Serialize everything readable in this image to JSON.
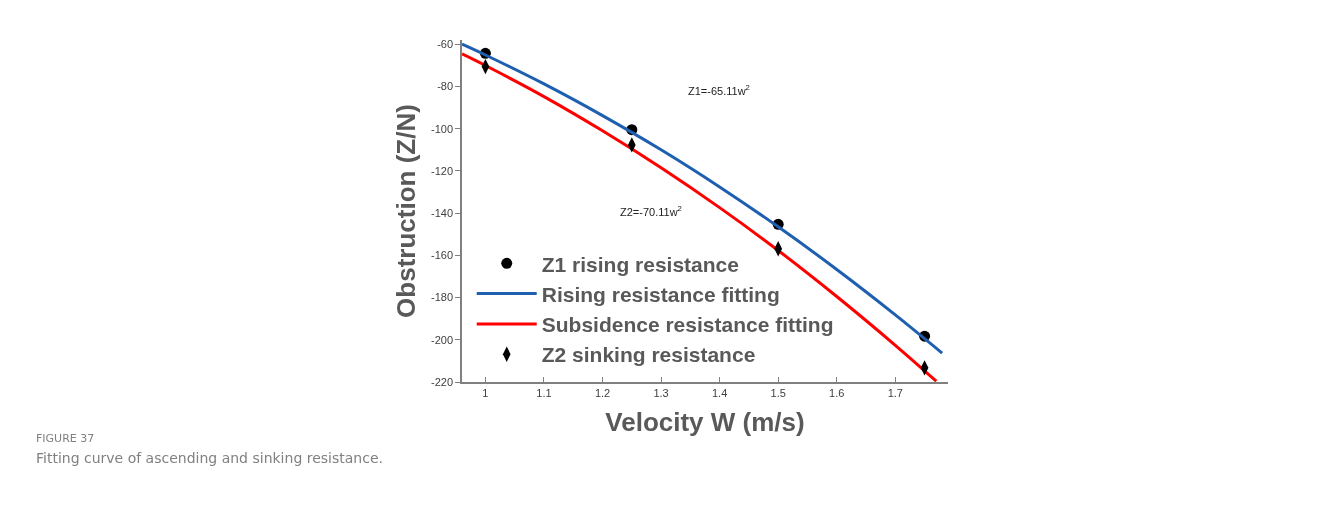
{
  "chart_data": {
    "type": "scatter",
    "xlabel": "Velocity W (m/s)",
    "ylabel": "Obstruction (Z/N)",
    "series": [
      {
        "name": "Z1 rising resistance",
        "marker": "circle",
        "color": "#000000",
        "x": [
          1,
          1.25,
          1.5,
          1.75
        ],
        "values": [
          -64.3,
          -100.5,
          -145.3,
          -198.3
        ]
      },
      {
        "name": "Rising resistance fitting",
        "type": "line",
        "marker": "none",
        "color": "#1f5fb0",
        "x": [
          0.96,
          1.0,
          1.1,
          1.2,
          1.3,
          1.4,
          1.5,
          1.6,
          1.7,
          1.78
        ],
        "values": [
          -60.0,
          -65.1,
          -78.8,
          -93.8,
          -110.0,
          -127.6,
          -146.5,
          -166.7,
          -188.2,
          -206.3
        ]
      },
      {
        "name": "Subsidence resistance fitting",
        "type": "line",
        "marker": "none",
        "color": "#ff0000",
        "x": [
          0.96,
          1.0,
          1.1,
          1.2,
          1.3,
          1.4,
          1.5,
          1.6,
          1.7,
          1.77
        ],
        "values": [
          -64.6,
          -70.1,
          -84.8,
          -101.0,
          -118.5,
          -137.4,
          -157.7,
          -179.5,
          -202.6,
          -219.6
        ]
      },
      {
        "name": "Z2 sinking resistance",
        "marker": "diamond",
        "color": "#000000",
        "x": [
          1,
          1.25,
          1.5,
          1.75
        ],
        "values": [
          -70.6,
          -107.7,
          -156.9,
          -213.3
        ]
      }
    ],
    "xlim": [
      0.96,
      1.79
    ],
    "ylim": [
      -220,
      -58
    ],
    "xticks": [
      1,
      1.1,
      1.2,
      1.3,
      1.4,
      1.5,
      1.6,
      1.7
    ],
    "yticks": [
      -220,
      -200,
      -180,
      -160,
      -140,
      -120,
      -100,
      -80,
      -60
    ],
    "legend": "bottom left",
    "annotations": [
      "Z1=-65.11w$^{2}$",
      "Z2=-70.11w$^{2}$",
      "FIGURE 37",
      "Fitting curve of ascending and sinking resistance."
    ]
  }
}
